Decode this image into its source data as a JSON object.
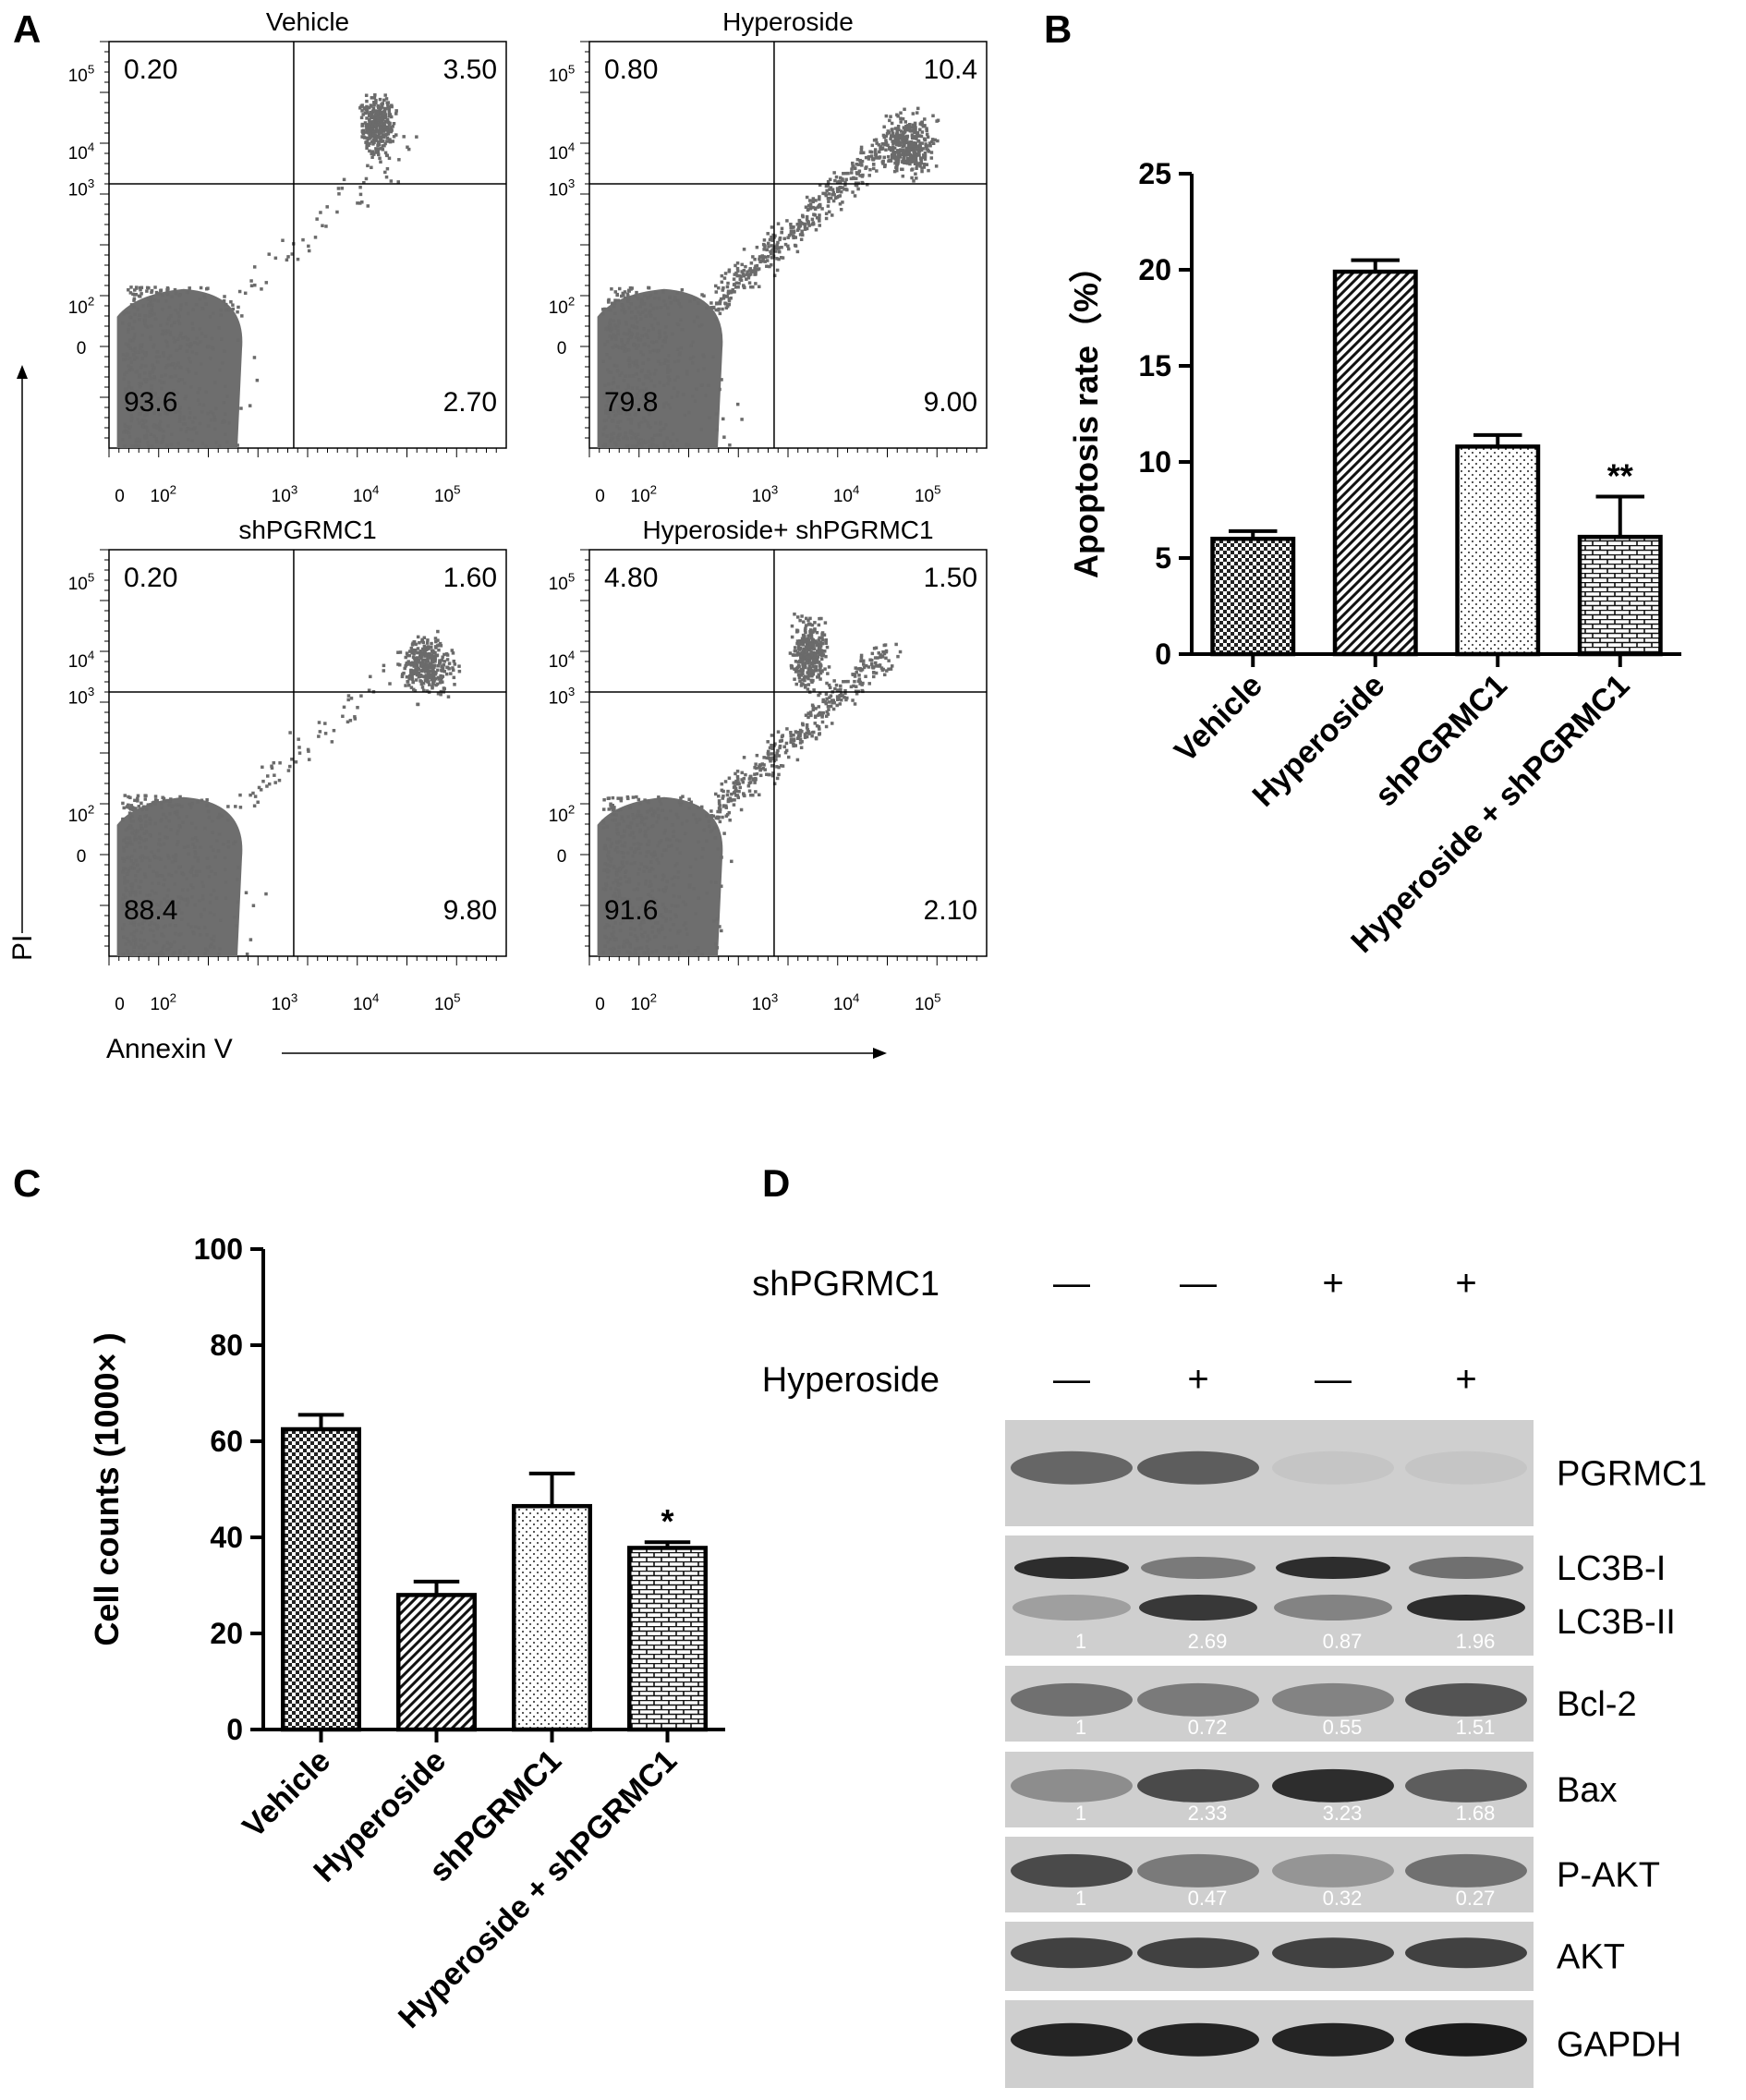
{
  "panel_letters": [
    "A",
    "B",
    "C",
    "D"
  ],
  "panel_a": {
    "x_axis_label": "Annexin V",
    "y_axis_label": "PI",
    "x_tick_labels": [
      "0",
      "10",
      "10",
      "10",
      "10"
    ],
    "x_tick_exponents": [
      "",
      "2",
      "3",
      "4",
      "5"
    ],
    "y_tick_labels": [
      "10",
      "10",
      "10",
      "10",
      "0"
    ],
    "y_tick_exponents": [
      "5",
      "4",
      "3",
      "2",
      ""
    ],
    "plots": [
      {
        "title": "Vehicle",
        "quadrants": {
          "ul": "0.20",
          "ur": "3.50",
          "ll": "93.6",
          "lr": "2.70"
        }
      },
      {
        "title": "Hyperoside",
        "quadrants": {
          "ul": "0.80",
          "ur": "10.4",
          "ll": "79.8",
          "lr": "9.00"
        }
      },
      {
        "title": "shPGRMC1",
        "quadrants": {
          "ul": "0.20",
          "ur": "1.60",
          "ll": "88.4",
          "lr": "9.80"
        }
      },
      {
        "title": "Hyperoside+ shPGRMC1",
        "quadrants": {
          "ul": "4.80",
          "ur": "1.50",
          "ll": "91.6",
          "lr": "2.10"
        }
      }
    ]
  },
  "chart_data": [
    {
      "type": "bar",
      "panel": "B",
      "categories": [
        "Vehicle",
        "Hyperoside",
        "shPGRMC1",
        "Hyperoside + shPGRMC1"
      ],
      "values": [
        6.0,
        19.9,
        10.8,
        6.1
      ],
      "errors": [
        0.4,
        0.6,
        0.6,
        2.1
      ],
      "annotations": [
        "",
        "",
        "",
        "**"
      ],
      "ylabel": "Apoptosis rate（%）",
      "ylim": [
        0,
        25
      ],
      "yticks": [
        0,
        5,
        10,
        15,
        20,
        25
      ]
    },
    {
      "type": "bar",
      "panel": "C",
      "categories": [
        "Vehicle",
        "Hyperoside",
        "shPGRMC1",
        "Hyperoside + shPGRMC1"
      ],
      "values": [
        62.5,
        28.0,
        46.5,
        37.8
      ],
      "errors": [
        3.0,
        2.8,
        6.8,
        1.2
      ],
      "annotations": [
        "",
        "",
        "",
        "*"
      ],
      "ylabel": "Cell counts (1000× )",
      "ylim": [
        0,
        100
      ],
      "yticks": [
        0,
        20,
        40,
        60,
        80,
        100
      ]
    }
  ],
  "panel_d": {
    "treatments": [
      {
        "label": "shPGRMC1",
        "signs": [
          "—",
          "—",
          "+",
          "+"
        ]
      },
      {
        "label": "Hyperoside",
        "signs": [
          "—",
          "+",
          "—",
          "+"
        ]
      }
    ],
    "blots": [
      {
        "labels": [
          "PGRMC1"
        ],
        "values": []
      },
      {
        "labels": [
          "LC3B-I",
          "LC3B-II"
        ],
        "values": [
          "1",
          "2.69",
          "0.87",
          "1.96"
        ]
      },
      {
        "labels": [
          "Bcl-2"
        ],
        "values": [
          "1",
          "0.72",
          "0.55",
          "1.51"
        ]
      },
      {
        "labels": [
          "Bax"
        ],
        "values": [
          "1",
          "2.33",
          "3.23",
          "1.68"
        ]
      },
      {
        "labels": [
          "P-AKT"
        ],
        "values": [
          "1",
          "0.47",
          "0.32",
          "0.27"
        ]
      },
      {
        "labels": [
          "AKT"
        ],
        "values": []
      },
      {
        "labels": [
          "GAPDH"
        ],
        "values": []
      }
    ]
  }
}
